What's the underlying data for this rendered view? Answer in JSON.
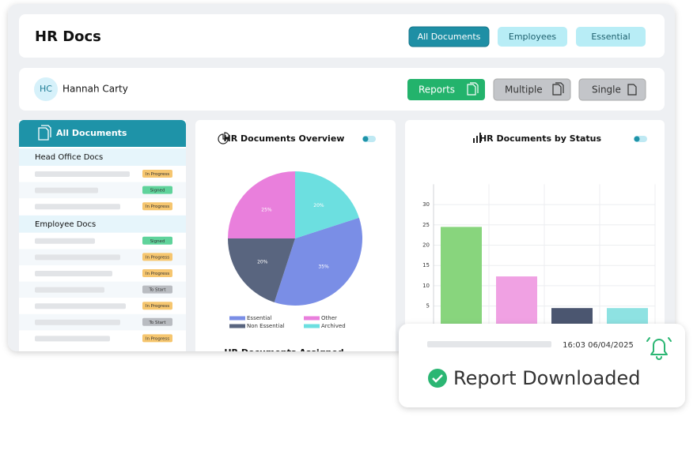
{
  "header": {
    "title": "HR Docs",
    "tabs": [
      "All Documents",
      "Employees",
      "Essential"
    ]
  },
  "user": {
    "initials": "HC",
    "name": "Hannah Carty",
    "actions": [
      "Reports",
      "Multiple",
      "Single"
    ]
  },
  "sidebar": {
    "title": "All Documents",
    "sections": [
      {
        "name": "Head Office Docs",
        "statuses": [
          {
            "label": "In Progress",
            "color": "#f6c66f"
          },
          {
            "label": "Signed",
            "color": "#5fd39b"
          },
          {
            "label": "In Progress",
            "color": "#f6c66f"
          }
        ]
      },
      {
        "name": "Employee Docs",
        "statuses": [
          {
            "label": "Signed",
            "color": "#5fd39b"
          },
          {
            "label": "In Progress",
            "color": "#f6c66f"
          },
          {
            "label": "In Progress",
            "color": "#f6c66f"
          },
          {
            "label": "To Start",
            "color": "#b9bcc1"
          },
          {
            "label": "In Progress",
            "color": "#f6c66f"
          },
          {
            "label": "To Start",
            "color": "#b9bcc1"
          },
          {
            "label": "In Progress",
            "color": "#f6c66f"
          }
        ]
      }
    ]
  },
  "chart_data": [
    {
      "type": "pie",
      "title": "HR Documents Overview",
      "categories": [
        "Essential",
        "Non Essential",
        "Other",
        "Archived"
      ],
      "values": [
        35,
        20,
        25,
        20
      ],
      "value_labels": [
        "35%",
        "20%",
        "25%",
        "20%"
      ],
      "colors": [
        "#7a8ee6",
        "#59657f",
        "#e97fdc",
        "#6cdfe0"
      ]
    },
    {
      "type": "bar",
      "title": "HR Documents by Status",
      "categories": [
        null,
        null,
        null,
        null
      ],
      "values": [
        24.5,
        12.3,
        4.5,
        4.5
      ],
      "colors": [
        "#88d57d",
        "#f0a1e3",
        "#4b5670",
        "#8ee2e2"
      ],
      "ylim": [
        0,
        35
      ],
      "yticks": [
        5,
        10,
        15,
        20,
        25,
        30
      ],
      "grid": true
    }
  ],
  "assigned_title": "HR Documents Assigned",
  "notification": {
    "timestamp": "16:03 06/04/2025",
    "message": "Report Downloaded"
  }
}
